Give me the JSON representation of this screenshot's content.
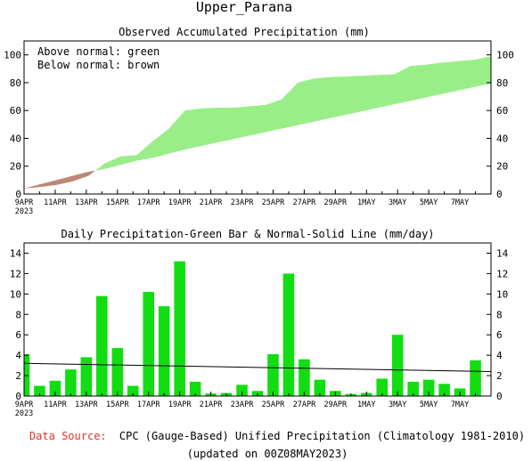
{
  "page": {
    "title": "Upper_Parana",
    "footer_source_label": "Data Source:",
    "footer_source_text": "CPC (Gauge-Based) Unified Precipitation (Climatology 1981-2010)",
    "footer_updated": "(updated on 00Z08MAY2023)"
  },
  "colors": {
    "above_normal": "#99ee88",
    "below_normal": "#bb8877",
    "bar": "#11dd11",
    "normal_line": "#000000",
    "source_label": "#dd3333"
  },
  "chart_data": [
    {
      "type": "area",
      "title": "Observed Accumulated Precipitation (mm)",
      "legend": [
        "Above normal: green",
        "Below normal: brown"
      ],
      "legend_position": "top-left",
      "x_ticks": [
        "9APR",
        "11APR",
        "13APR",
        "15APR",
        "17APR",
        "19APR",
        "21APR",
        "23APR",
        "25APR",
        "27APR",
        "29APR",
        "1MAY",
        "3MAY",
        "5MAY",
        "7MAY"
      ],
      "x_year_label": "2023",
      "ylim": [
        0,
        110
      ],
      "y_ticks": [
        0,
        20,
        40,
        60,
        80,
        100
      ],
      "days": [
        "9APR",
        "10APR",
        "11APR",
        "12APR",
        "13APR",
        "14APR",
        "15APR",
        "16APR",
        "17APR",
        "18APR",
        "19APR",
        "20APR",
        "21APR",
        "22APR",
        "23APR",
        "24APR",
        "25APR",
        "26APR",
        "27APR",
        "28APR",
        "29APR",
        "30APR",
        "1MAY",
        "2MAY",
        "3MAY",
        "4MAY",
        "5MAY",
        "6MAY",
        "7MAY",
        "8MAY"
      ],
      "observed": [
        4,
        5,
        6.5,
        9,
        13,
        22,
        27,
        28,
        38,
        47,
        60,
        61.5,
        62,
        62,
        63,
        64,
        68,
        80,
        83,
        84,
        84.5,
        85,
        85.5,
        86,
        92,
        93,
        94.5,
        95.5,
        96.5,
        99
      ],
      "normal": [
        4,
        7,
        10,
        13,
        16,
        18,
        21,
        24,
        26,
        29,
        32,
        34.5,
        37,
        39.5,
        42,
        44.5,
        47,
        49.5,
        52,
        54.5,
        57,
        59.5,
        62,
        64.5,
        67,
        69.5,
        72,
        74.5,
        77,
        79.5
      ]
    },
    {
      "type": "bar",
      "title": "Daily Precipitation-Green Bar & Normal-Solid Line (mm/day)",
      "x_ticks": [
        "9APR",
        "11APR",
        "13APR",
        "15APR",
        "17APR",
        "19APR",
        "21APR",
        "23APR",
        "25APR",
        "27APR",
        "29APR",
        "1MAY",
        "3MAY",
        "5MAY",
        "7MAY"
      ],
      "x_year_label": "2023",
      "ylim": [
        0,
        15
      ],
      "y_ticks": [
        0,
        2,
        4,
        6,
        8,
        10,
        12,
        14
      ],
      "days": [
        "9APR",
        "10APR",
        "11APR",
        "12APR",
        "13APR",
        "14APR",
        "15APR",
        "16APR",
        "17APR",
        "18APR",
        "19APR",
        "20APR",
        "21APR",
        "22APR",
        "23APR",
        "24APR",
        "25APR",
        "26APR",
        "27APR",
        "28APR",
        "29APR",
        "30APR",
        "1MAY",
        "2MAY",
        "3MAY",
        "4MAY",
        "5MAY",
        "6MAY",
        "7MAY",
        "8MAY"
      ],
      "values": [
        4.1,
        1.0,
        1.5,
        2.6,
        3.8,
        9.8,
        4.7,
        1.0,
        10.2,
        8.8,
        13.2,
        1.4,
        0.25,
        0.3,
        1.1,
        0.5,
        4.1,
        12.0,
        3.6,
        1.6,
        0.5,
        0.2,
        0.3,
        1.7,
        6.0,
        1.4,
        1.6,
        1.2,
        0.75,
        3.5
      ],
      "normal_line": [
        3.2,
        2.4
      ]
    }
  ]
}
